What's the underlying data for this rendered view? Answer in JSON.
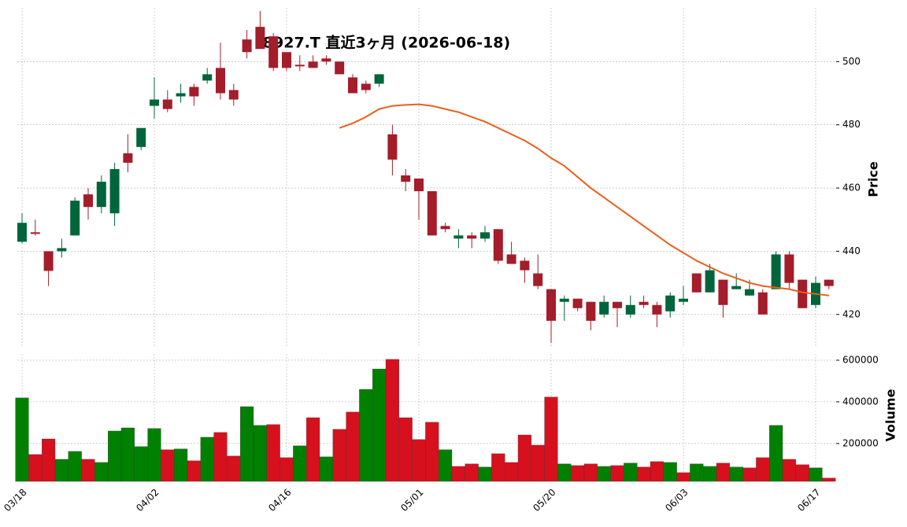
{
  "chart_data": {
    "type": "candlestick",
    "title": "8927.T  直近3ヶ月 (2026-06-18)",
    "y_label": "Price",
    "y2_label": "Volume",
    "categories": [
      "03/18",
      null,
      null,
      null,
      null,
      null,
      null,
      null,
      null,
      null,
      "04/02",
      null,
      null,
      null,
      null,
      null,
      null,
      null,
      null,
      null,
      "04/16",
      null,
      null,
      null,
      null,
      null,
      null,
      null,
      null,
      null,
      "05/01",
      null,
      null,
      null,
      null,
      null,
      null,
      null,
      null,
      null,
      "05/20",
      null,
      null,
      null,
      null,
      null,
      null,
      null,
      null,
      null,
      "06/03",
      null,
      null,
      null,
      null,
      null,
      null,
      null,
      null,
      null,
      "06/17",
      null
    ],
    "open": [
      443,
      446,
      440,
      440,
      445,
      458,
      454,
      452,
      471,
      473,
      486,
      488,
      489,
      492,
      494,
      498,
      491,
      507,
      511,
      508,
      503,
      499,
      500,
      501,
      500,
      495,
      493,
      493,
      477,
      464,
      463,
      459,
      448,
      444,
      445,
      444,
      447,
      439,
      437,
      433,
      428,
      424,
      425,
      424,
      420,
      424,
      420,
      424,
      423,
      421,
      424,
      433,
      427,
      431,
      428,
      426,
      427,
      428,
      439,
      431,
      423,
      431
    ],
    "high": [
      452,
      450,
      440,
      444,
      457,
      460,
      464,
      468,
      477,
      479,
      495,
      491,
      493,
      493,
      498,
      506,
      493,
      510,
      516,
      509,
      503,
      502,
      502,
      502,
      500,
      496,
      494,
      496,
      480,
      466,
      463,
      459,
      449,
      447,
      446,
      448,
      447,
      443,
      438,
      439,
      428,
      426,
      425,
      424,
      426,
      424,
      426,
      426,
      424,
      427,
      429,
      433,
      436,
      431,
      433,
      431,
      428,
      440,
      440,
      431,
      432,
      431
    ],
    "low": [
      442.5,
      445,
      429,
      438,
      445,
      450,
      452,
      448,
      465,
      472,
      482,
      484,
      487,
      486,
      493,
      488,
      486,
      501,
      504,
      497,
      497,
      497,
      498,
      499,
      496,
      490,
      490,
      492,
      464,
      459,
      450,
      445,
      446,
      441,
      441,
      443,
      436,
      436,
      430,
      428,
      411,
      418,
      421,
      415,
      419,
      416,
      419,
      422,
      416,
      419,
      423,
      427,
      427,
      419,
      428,
      426,
      420,
      428,
      428,
      422,
      422,
      428
    ],
    "close": [
      449,
      445.5,
      433.8,
      441,
      456,
      454,
      462,
      466,
      468,
      479,
      488,
      485,
      490,
      489,
      496,
      490,
      488,
      503,
      504,
      498,
      498,
      498.5,
      498,
      500,
      496,
      490,
      491,
      496,
      469,
      462,
      459,
      445,
      447,
      445,
      444,
      446,
      437,
      436,
      434,
      429,
      418,
      425,
      422,
      418,
      424,
      422,
      423,
      423,
      420,
      426,
      425,
      427,
      434,
      423,
      429,
      428,
      420,
      439,
      430,
      422,
      430,
      429
    ],
    "up_color": "#00653b",
    "down_color": "#a31d2a",
    "ylim": [
      410,
      517
    ],
    "yticks": [
      420,
      440,
      460,
      480,
      500
    ],
    "grid": true,
    "moving_average": {
      "color": "#e8601c",
      "values": [
        null,
        null,
        null,
        null,
        null,
        null,
        null,
        null,
        null,
        null,
        null,
        null,
        null,
        null,
        null,
        null,
        null,
        null,
        null,
        null,
        null,
        null,
        null,
        null,
        479,
        480.5,
        482.5,
        485,
        486,
        486.3,
        486.5,
        486,
        485,
        484,
        482.5,
        481,
        479,
        477,
        475,
        472.5,
        469.5,
        467,
        463.5,
        460,
        457,
        454,
        451,
        448,
        445,
        442,
        439.5,
        437,
        435,
        433,
        431.5,
        430,
        429,
        428.5,
        428,
        427,
        426.5,
        426
      ]
    },
    "volume": {
      "values": [
        419000,
        147000,
        222000,
        124000,
        162000,
        124000,
        109000,
        260000,
        275000,
        185000,
        272000,
        170000,
        174000,
        117000,
        230000,
        253000,
        140000,
        377000,
        287000,
        291000,
        132000,
        189000,
        324000,
        136000,
        268000,
        351000,
        460000,
        558000,
        604000,
        324000,
        219000,
        302000,
        170000,
        90000,
        102000,
        87000,
        151000,
        109000,
        241000,
        192000,
        423000,
        102000,
        94000,
        102000,
        90000,
        94000,
        106000,
        87000,
        113000,
        109000,
        60000,
        102000,
        90000,
        106000,
        87000,
        83000,
        132000,
        287000,
        124000,
        98000,
        83000,
        34000
      ],
      "up_color": "#008000",
      "down_color": "#d7101e",
      "ylim": [
        18000,
        630000
      ],
      "yticks": [
        200000,
        400000,
        600000
      ]
    }
  }
}
